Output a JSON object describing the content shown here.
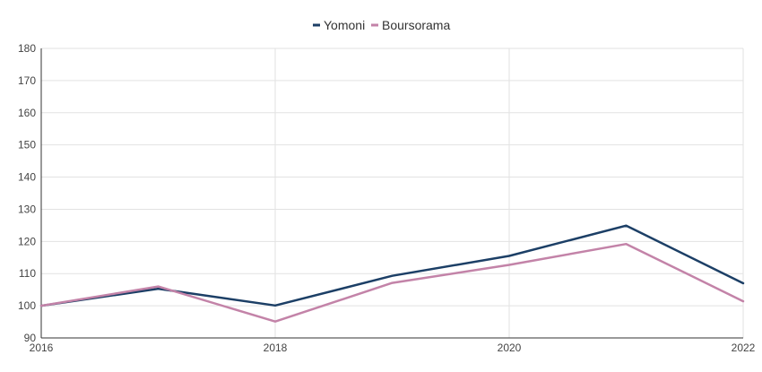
{
  "chart_data": {
    "type": "line",
    "title": "",
    "xlabel": "",
    "ylabel": "",
    "x": [
      2016,
      2017,
      2018,
      2019,
      2020,
      2021,
      2022
    ],
    "xticks": [
      "2016",
      "2018",
      "2020",
      "2022"
    ],
    "xlim": [
      2016,
      2022
    ],
    "ylim": [
      90,
      180
    ],
    "yticks": [
      "90",
      "100",
      "110",
      "120",
      "130",
      "140",
      "150",
      "160",
      "170",
      "180"
    ],
    "grid": true,
    "legend_position": "top-center",
    "series": [
      {
        "name": "Yomoni",
        "color": "#1c3f66",
        "values": [
          100,
          105.3,
          100.1,
          109.3,
          115.5,
          124.9,
          107
        ]
      },
      {
        "name": "Boursorama",
        "color": "#c383a8",
        "values": [
          100,
          106,
          95.1,
          107.1,
          112.7,
          119.2,
          101.4
        ]
      }
    ]
  }
}
